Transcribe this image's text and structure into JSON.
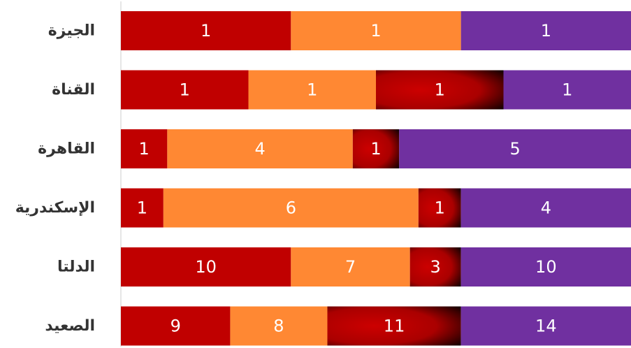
{
  "chart_data": {
    "type": "bar",
    "orientation": "horizontal",
    "stacked": "percent",
    "categories": [
      "الجيزة",
      "القناة",
      "القاهرة",
      "الإسكندرية",
      "الدلتا",
      "الصعيد"
    ],
    "series": [
      {
        "values": [
          1,
          1,
          1,
          1,
          10,
          9
        ],
        "color": "#c00000"
      },
      {
        "values": [
          1,
          1,
          4,
          6,
          7,
          8
        ],
        "color": "#ff8833"
      },
      {
        "values": [
          0,
          1,
          1,
          1,
          3,
          11
        ],
        "color": "#cc0000",
        "gradient_to": "#000000"
      },
      {
        "values": [
          1,
          1,
          5,
          4,
          10,
          14
        ],
        "color": "#7030a0"
      }
    ],
    "legend": "none",
    "grid": false
  }
}
